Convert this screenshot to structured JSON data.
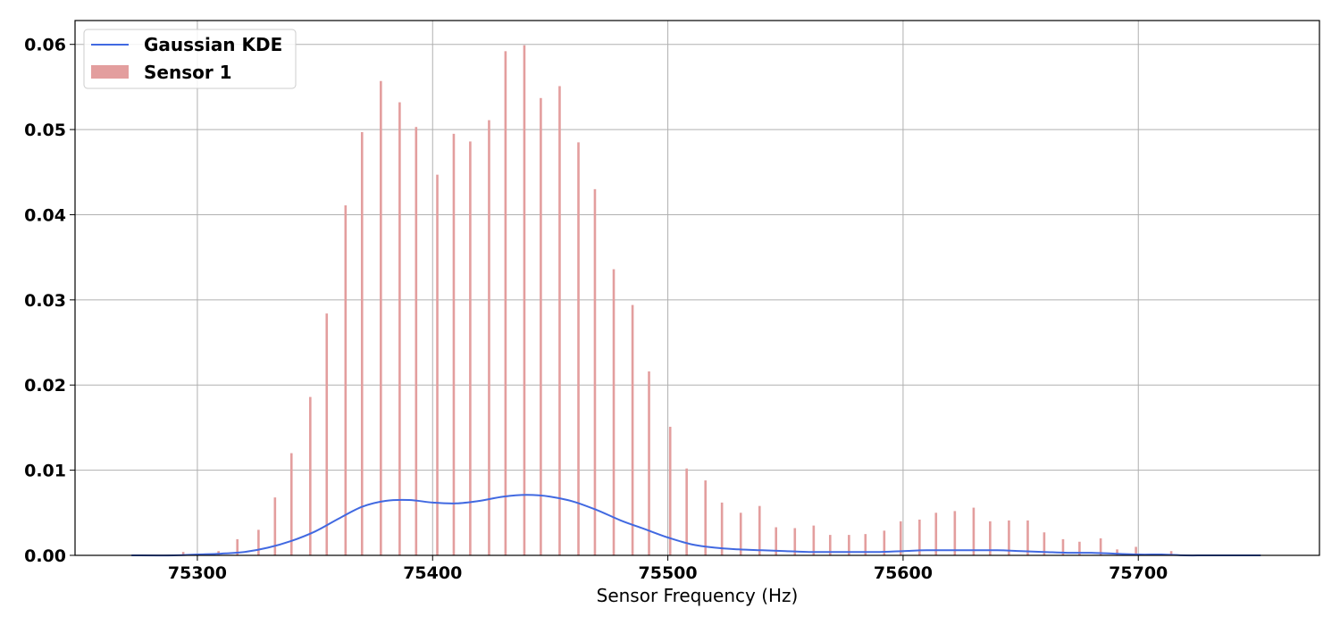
{
  "chart_data": {
    "type": "bar",
    "title": "",
    "xlabel": "Sensor Frequency (Hz)",
    "ylabel": "",
    "xlim": [
      75248,
      75777
    ],
    "ylim": [
      0,
      0.0628
    ],
    "xticks": [
      75300,
      75400,
      75500,
      75600,
      75700
    ],
    "yticks": [
      0.0,
      0.01,
      0.02,
      0.03,
      0.04,
      0.05,
      0.06
    ],
    "ytick_labels": [
      "0.00",
      "0.01",
      "0.02",
      "0.03",
      "0.04",
      "0.05",
      "0.06"
    ],
    "grid": true,
    "legend_position": "top-left",
    "legend": [
      "Gaussian KDE",
      "Sensor 1"
    ],
    "colors": {
      "kde": "#4169e1",
      "bars": "#e39e9e",
      "grid": "#b0b0b0"
    },
    "series": [
      {
        "name": "Sensor 1",
        "type": "bar",
        "x": [
          75294,
          75309,
          75317,
          75326,
          75333,
          75340,
          75348,
          75355,
          75363,
          75370,
          75378,
          75386,
          75393,
          75402,
          75409,
          75416,
          75424,
          75431,
          75439,
          75446,
          75454,
          75462,
          75469,
          75477,
          75485,
          75492,
          75501,
          75508,
          75516,
          75523,
          75531,
          75539,
          75546,
          75554,
          75562,
          75569,
          75577,
          75584,
          75592,
          75599,
          75607,
          75614,
          75622,
          75630,
          75637,
          75645,
          75653,
          75660,
          75668,
          75675,
          75684,
          75691,
          75699,
          75714
        ],
        "values": [
          0.0004,
          0.0005,
          0.0019,
          0.003,
          0.0068,
          0.012,
          0.0186,
          0.0284,
          0.0411,
          0.0497,
          0.0557,
          0.0532,
          0.0503,
          0.0447,
          0.0495,
          0.0486,
          0.0511,
          0.0592,
          0.0599,
          0.0537,
          0.0551,
          0.0485,
          0.043,
          0.0336,
          0.0294,
          0.0216,
          0.0151,
          0.0102,
          0.0088,
          0.0062,
          0.005,
          0.0058,
          0.0033,
          0.0032,
          0.0035,
          0.0024,
          0.0024,
          0.0025,
          0.0029,
          0.004,
          0.0042,
          0.005,
          0.0052,
          0.0056,
          0.004,
          0.0041,
          0.0041,
          0.0027,
          0.0019,
          0.0016,
          0.002,
          0.0007,
          0.001,
          0.0005
        ]
      },
      {
        "name": "Gaussian KDE",
        "type": "line",
        "x": [
          75272,
          75290,
          75300,
          75310,
          75320,
          75330,
          75340,
          75350,
          75360,
          75370,
          75380,
          75390,
          75400,
          75410,
          75420,
          75430,
          75440,
          75450,
          75460,
          75470,
          75480,
          75490,
          75500,
          75510,
          75520,
          75530,
          75540,
          75550,
          75560,
          75570,
          75580,
          75590,
          75600,
          75610,
          75620,
          75630,
          75640,
          75650,
          75660,
          75670,
          75680,
          75690,
          75700,
          75710,
          75720,
          75730,
          75752
        ],
        "values": [
          0.0,
          0.0,
          0.0001,
          0.0002,
          0.0004,
          0.0009,
          0.0017,
          0.0028,
          0.0043,
          0.0057,
          0.0064,
          0.0065,
          0.0062,
          0.0061,
          0.0064,
          0.0069,
          0.0071,
          0.0069,
          0.0063,
          0.0053,
          0.0041,
          0.0031,
          0.0021,
          0.0013,
          0.0009,
          0.0007,
          0.0006,
          0.0005,
          0.0004,
          0.0004,
          0.0004,
          0.0004,
          0.0005,
          0.0006,
          0.0006,
          0.0006,
          0.0006,
          0.0005,
          0.0004,
          0.0003,
          0.0003,
          0.0002,
          0.0001,
          0.0001,
          0.0,
          0.0,
          0.0
        ]
      }
    ]
  }
}
